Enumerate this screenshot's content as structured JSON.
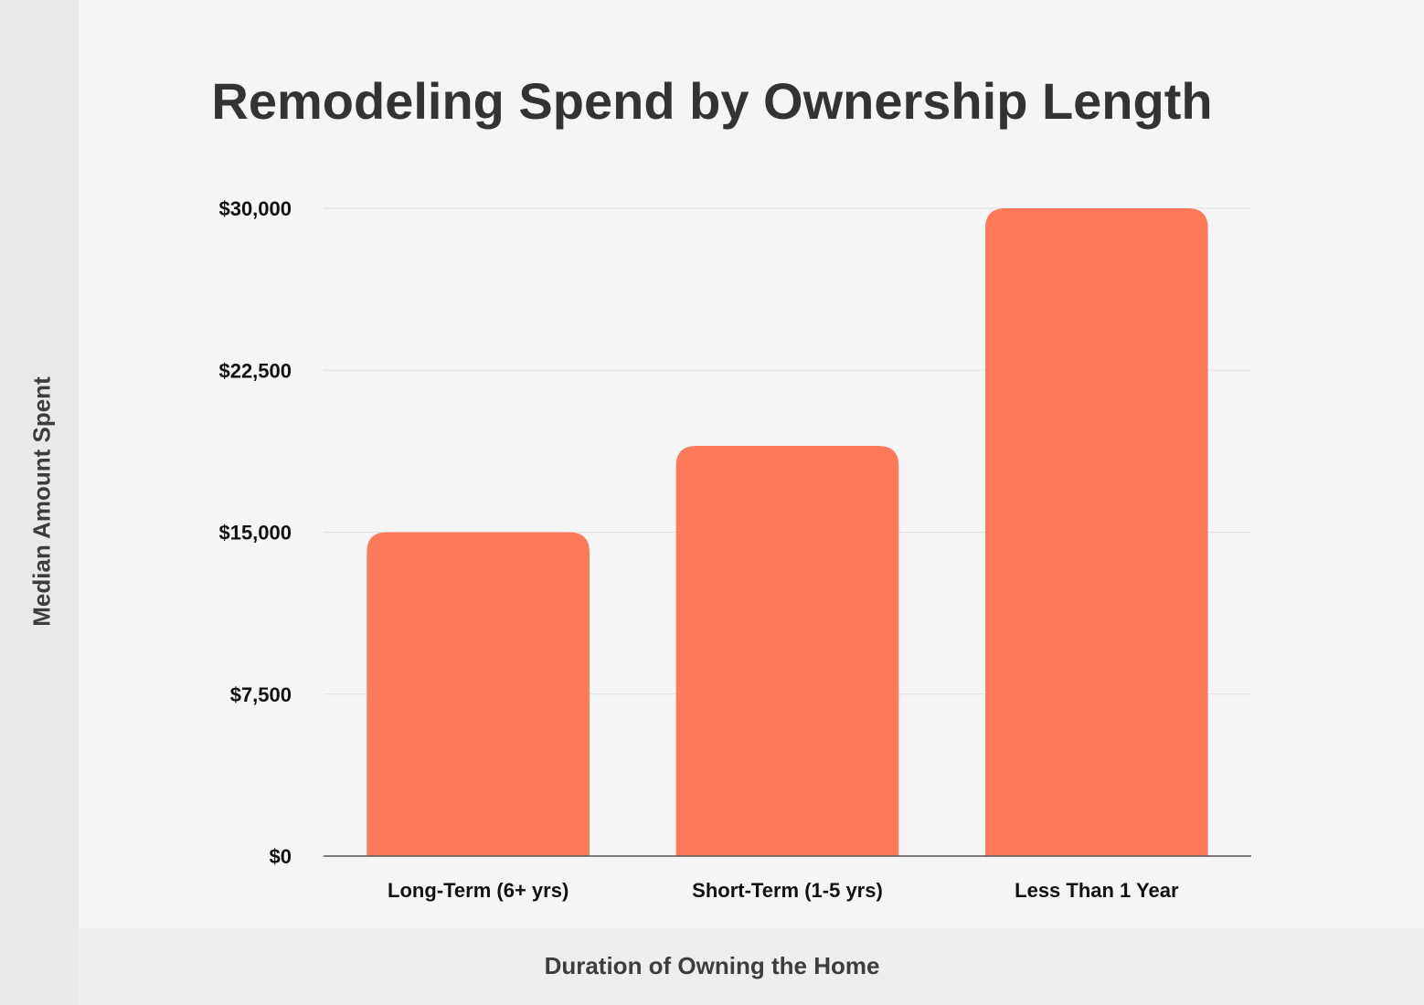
{
  "chart_data": {
    "type": "bar",
    "title": "Remodeling Spend by Ownership Length",
    "xlabel": "Duration of Owning the Home",
    "ylabel": "Median Amount Spent",
    "categories": [
      "Long-Term (6+ yrs)",
      "Short-Term (1-5 yrs)",
      "Less Than 1 Year"
    ],
    "values": [
      15000,
      19000,
      30000
    ],
    "ylim": [
      0,
      30000
    ],
    "yticks": [
      0,
      7500,
      15000,
      22500,
      30000
    ],
    "ytick_labels": [
      "$0",
      "$7,500",
      "$15,000",
      "$22,500",
      "$30,000"
    ],
    "grid": true,
    "bar_color": "#ff7a5a"
  }
}
